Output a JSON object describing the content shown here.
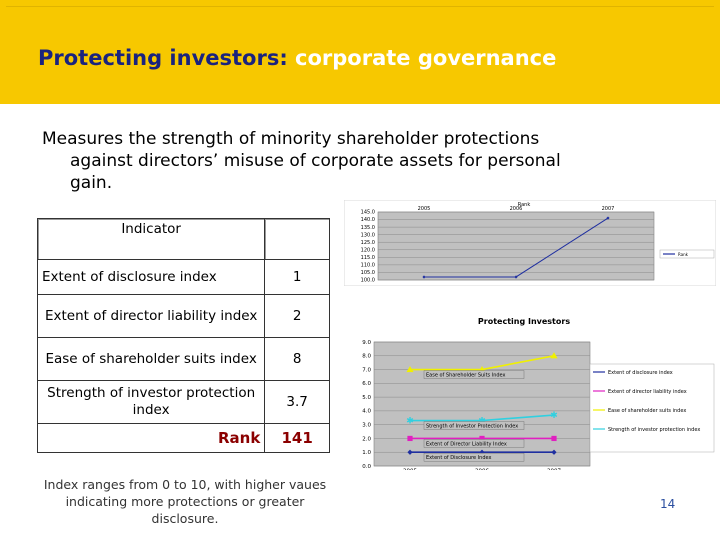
{
  "header": {
    "title_part1": "Protecting investors:",
    "title_part2": "corporate governance"
  },
  "description": {
    "line1": "Measures the strength of minority shareholder protections",
    "line2": "against directors’ misuse of corporate assets for personal",
    "line3": "gain."
  },
  "table": {
    "header": "Indicator",
    "rows": [
      {
        "label": "Extent of disclosure index",
        "value": "1"
      },
      {
        "label": "Extent of director liability index",
        "value": "2"
      },
      {
        "label": "Ease of shareholder suits index",
        "value": "8"
      },
      {
        "label": "Strength of investor protection index",
        "value": "3.7"
      }
    ],
    "rank_label": "Rank",
    "rank_value": "141"
  },
  "note": "Index ranges from 0 to 10, with higher vaues indicating more protections or greater disclosure.",
  "page_number": "14",
  "colors": {
    "banner": "#f7c800",
    "title_primary": "#1a237e",
    "title_secondary": "#ffffff",
    "rank": "#8b0000",
    "plot_bg": "#c0c0c0",
    "line_blue": "#1f2fa0",
    "line_magenta": "#e020c0",
    "line_yellow": "#f0f000",
    "line_cyan": "#30d0e0"
  },
  "chart_data": [
    {
      "type": "line",
      "title": "Rank",
      "categories": [
        "2005",
        "2006",
        "2007"
      ],
      "y_ticks": [
        "100.0",
        "105.0",
        "110.0",
        "115.0",
        "120.0",
        "125.0",
        "130.0",
        "135.0",
        "140.0",
        "145.0"
      ],
      "ylim": [
        100,
        145
      ],
      "series": [
        {
          "name": "Rank",
          "values": [
            102,
            102,
            141
          ]
        }
      ],
      "legend_position": "right"
    },
    {
      "type": "line",
      "title": "Protecting Investors",
      "categories": [
        "2005",
        "2006",
        "2007"
      ],
      "y_ticks": [
        "0.0",
        "1.0",
        "2.0",
        "3.0",
        "4.0",
        "5.0",
        "6.0",
        "7.0",
        "8.0",
        "9.0"
      ],
      "ylim": [
        0,
        9
      ],
      "series": [
        {
          "name": "Extent of disclosure index",
          "label": "Extent of Disclosure Index",
          "values": [
            1,
            1,
            1
          ]
        },
        {
          "name": "Extent of director liability index",
          "label": "Extent of Director Liability Index",
          "values": [
            2,
            2,
            2
          ]
        },
        {
          "name": "Ease of shareholder suits index",
          "label": "Ease of Shareholder Suits Index",
          "values": [
            7,
            7,
            8
          ]
        },
        {
          "name": "Strength of investor protection index",
          "label": "Strength of Investor Protection Index",
          "values": [
            3.3,
            3.3,
            3.7
          ]
        }
      ],
      "legend_position": "right"
    }
  ]
}
